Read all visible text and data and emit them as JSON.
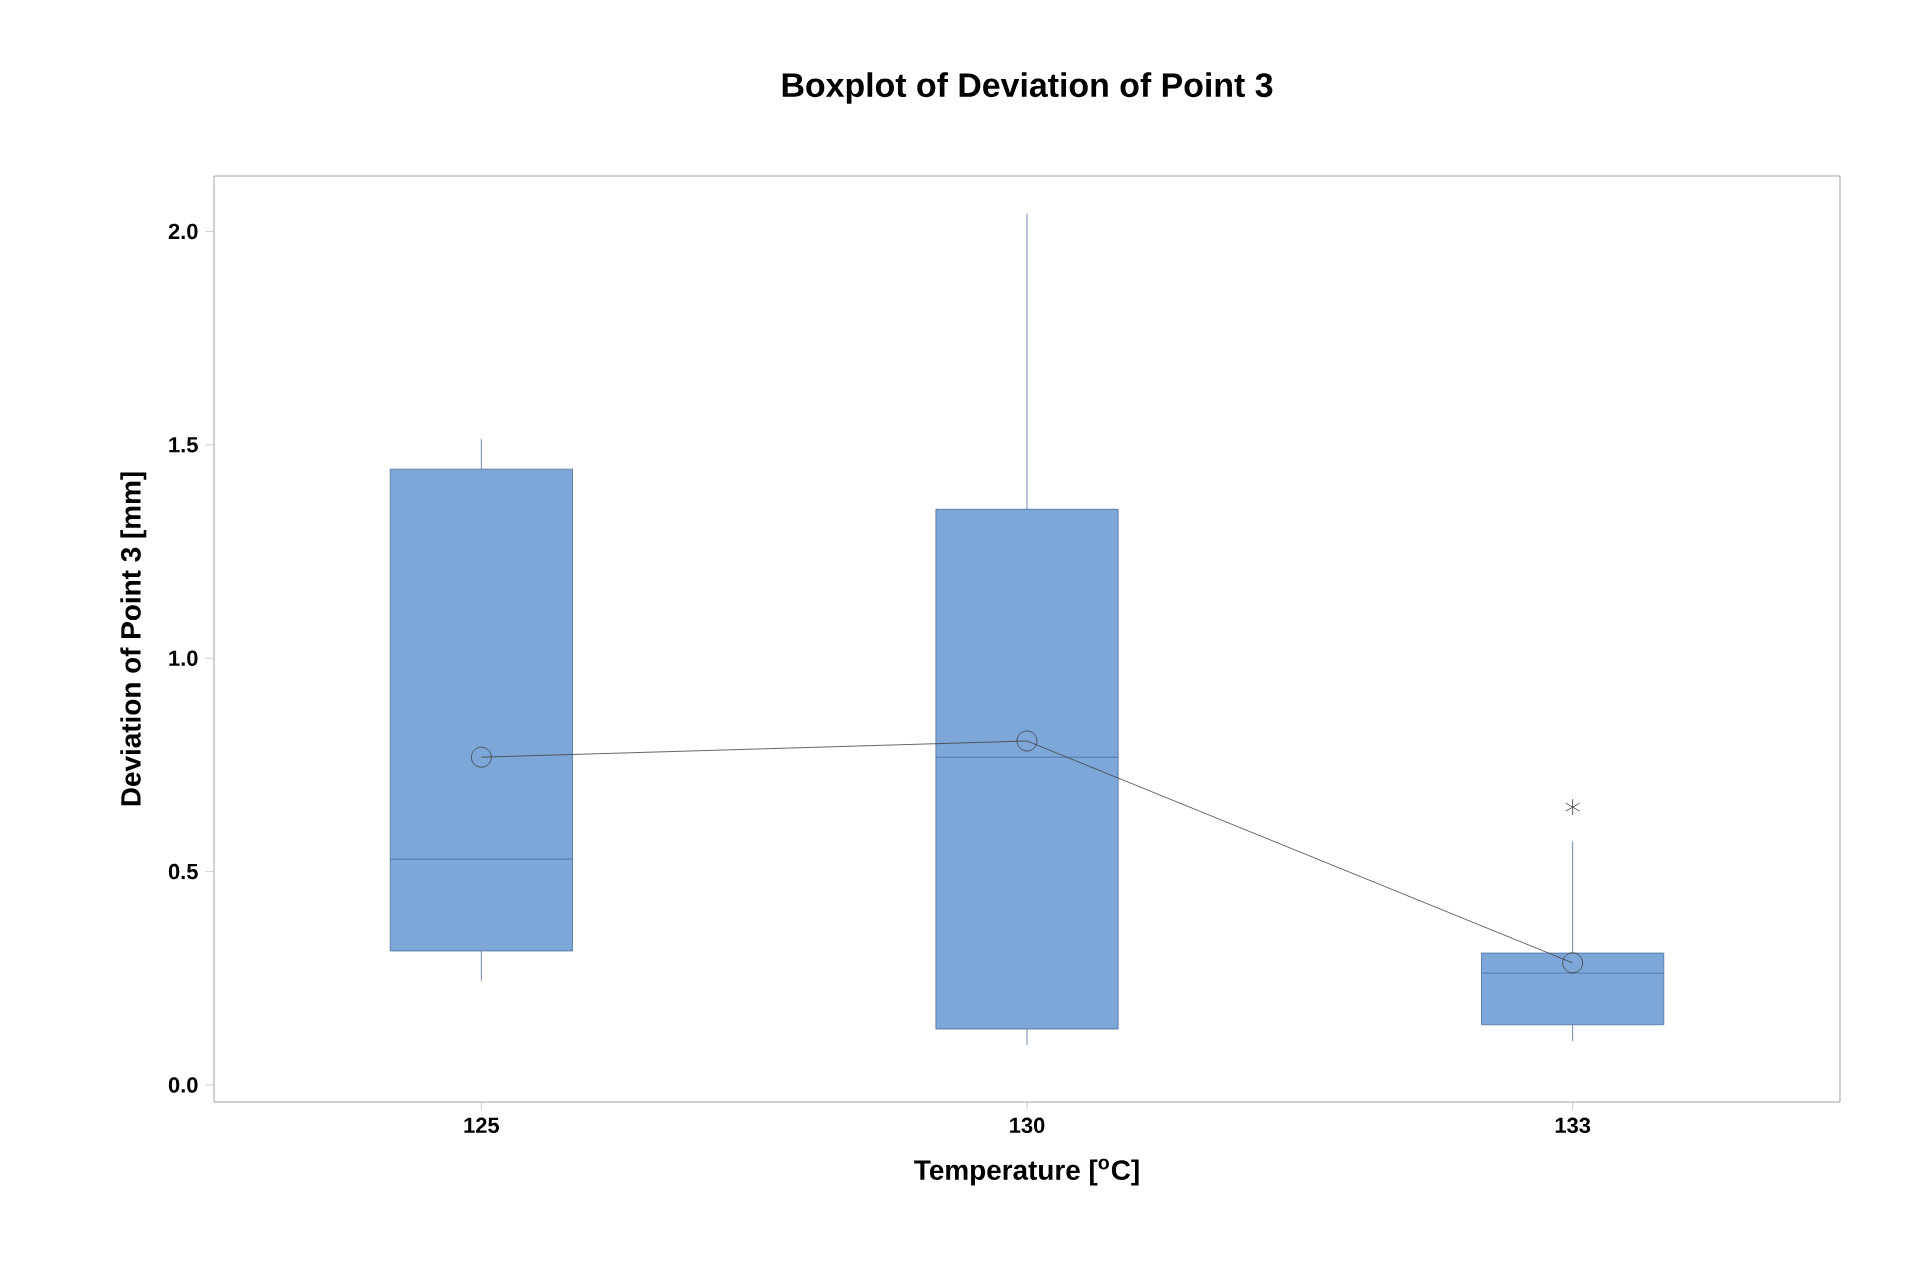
{
  "chart_data": {
    "type": "box",
    "title": "Boxplot of Deviation of Point 3",
    "xlabel": "Temperature [$^{o}$C]",
    "ylabel": "Deviation of Point 3 [mm]",
    "categories": [
      "125",
      "130",
      "133"
    ],
    "color": "#7da7d9",
    "boxes": [
      {
        "low": 0.244,
        "q1": 0.314,
        "median": 0.529,
        "q3": 1.443,
        "high": 1.513
      },
      {
        "low": 0.094,
        "q1": 0.131,
        "median": 0.768,
        "q3": 1.349,
        "high": 2.042
      },
      {
        "low": 0.103,
        "q1": 0.141,
        "median": 0.262,
        "q3": 0.309,
        "high": 0.571,
        "outliers": [
          0.651
        ]
      }
    ],
    "series": [
      {
        "type": "line",
        "x": [
          "125",
          "130",
          "133"
        ],
        "values": [
          0.768,
          0.806,
          0.286
        ],
        "color": "#404040",
        "marker": "circle"
      }
    ],
    "ylim": [
      -0.04,
      2.13
    ],
    "yticks": [
      {
        "value": 0,
        "label": "0.0"
      },
      {
        "value": 0.5,
        "label": "0.5"
      },
      {
        "value": 1,
        "label": "1.0"
      },
      {
        "value": 1.5,
        "label": "1.5"
      },
      {
        "value": 2,
        "label": "2.0"
      }
    ]
  }
}
